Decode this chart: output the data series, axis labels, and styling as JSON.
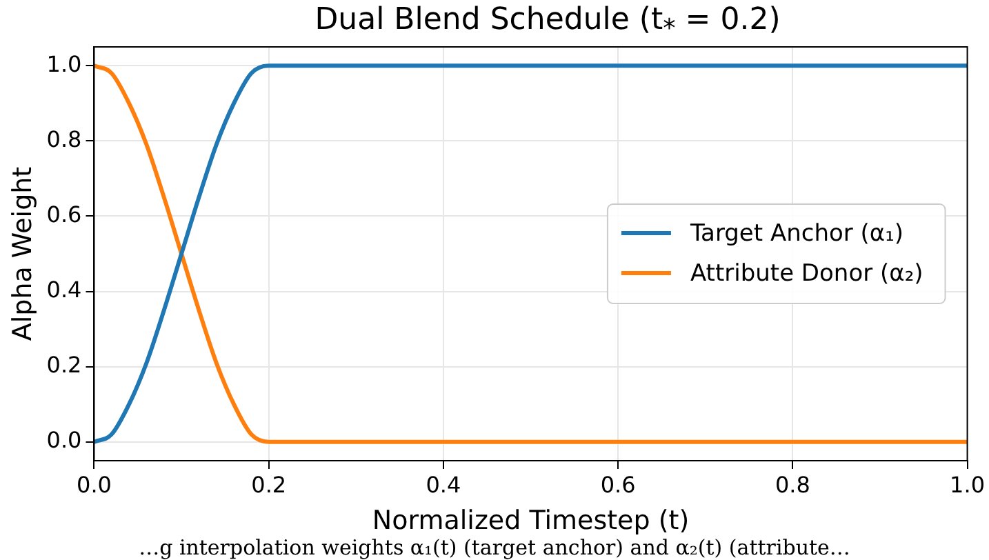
{
  "chart_data": {
    "type": "line",
    "title": "Dual Blend Schedule (t$_{*}$ = 0.2)",
    "xlabel": "Normalized Timestep (t)",
    "ylabel": "Alpha Weight",
    "x": [
      0,
      0.02,
      0.04,
      0.06,
      0.08,
      0.1,
      0.12,
      0.14,
      0.16,
      0.18,
      0.2,
      0.4,
      0.6,
      0.8,
      1.0
    ],
    "series": [
      {
        "name": "Target Anchor (α₁)",
        "color": "#1f77b4",
        "values": [
          0,
          0.02,
          0.1,
          0.21,
          0.35,
          0.5,
          0.65,
          0.79,
          0.9,
          0.98,
          1,
          1,
          1,
          1,
          1
        ]
      },
      {
        "name": "Attribute Donor (α₂)",
        "color": "#ff7f0e",
        "values": [
          1,
          0.98,
          0.9,
          0.79,
          0.65,
          0.5,
          0.35,
          0.21,
          0.1,
          0.02,
          0,
          0,
          0,
          0,
          0
        ]
      }
    ],
    "xlim": [
      0,
      1
    ],
    "xticks": [
      {
        "value": 0,
        "label": "0.0"
      },
      0.2,
      0.4,
      0.6,
      0.8,
      {
        "value": 1,
        "label": "1.0"
      }
    ],
    "ylim": [
      -0.05,
      1.05
    ],
    "yticks": [
      {
        "value": 0,
        "label": "0.0"
      },
      0.2,
      0.4,
      0.6,
      0.8,
      {
        "value": 1,
        "label": "1.0"
      }
    ],
    "grid": true,
    "legend": "right",
    "marker": "none",
    "line_style": "solid",
    "annotations": [
      "…g interpolation weights α₁(t) (target anchor) and α₂(t) (attribute…"
    ]
  }
}
